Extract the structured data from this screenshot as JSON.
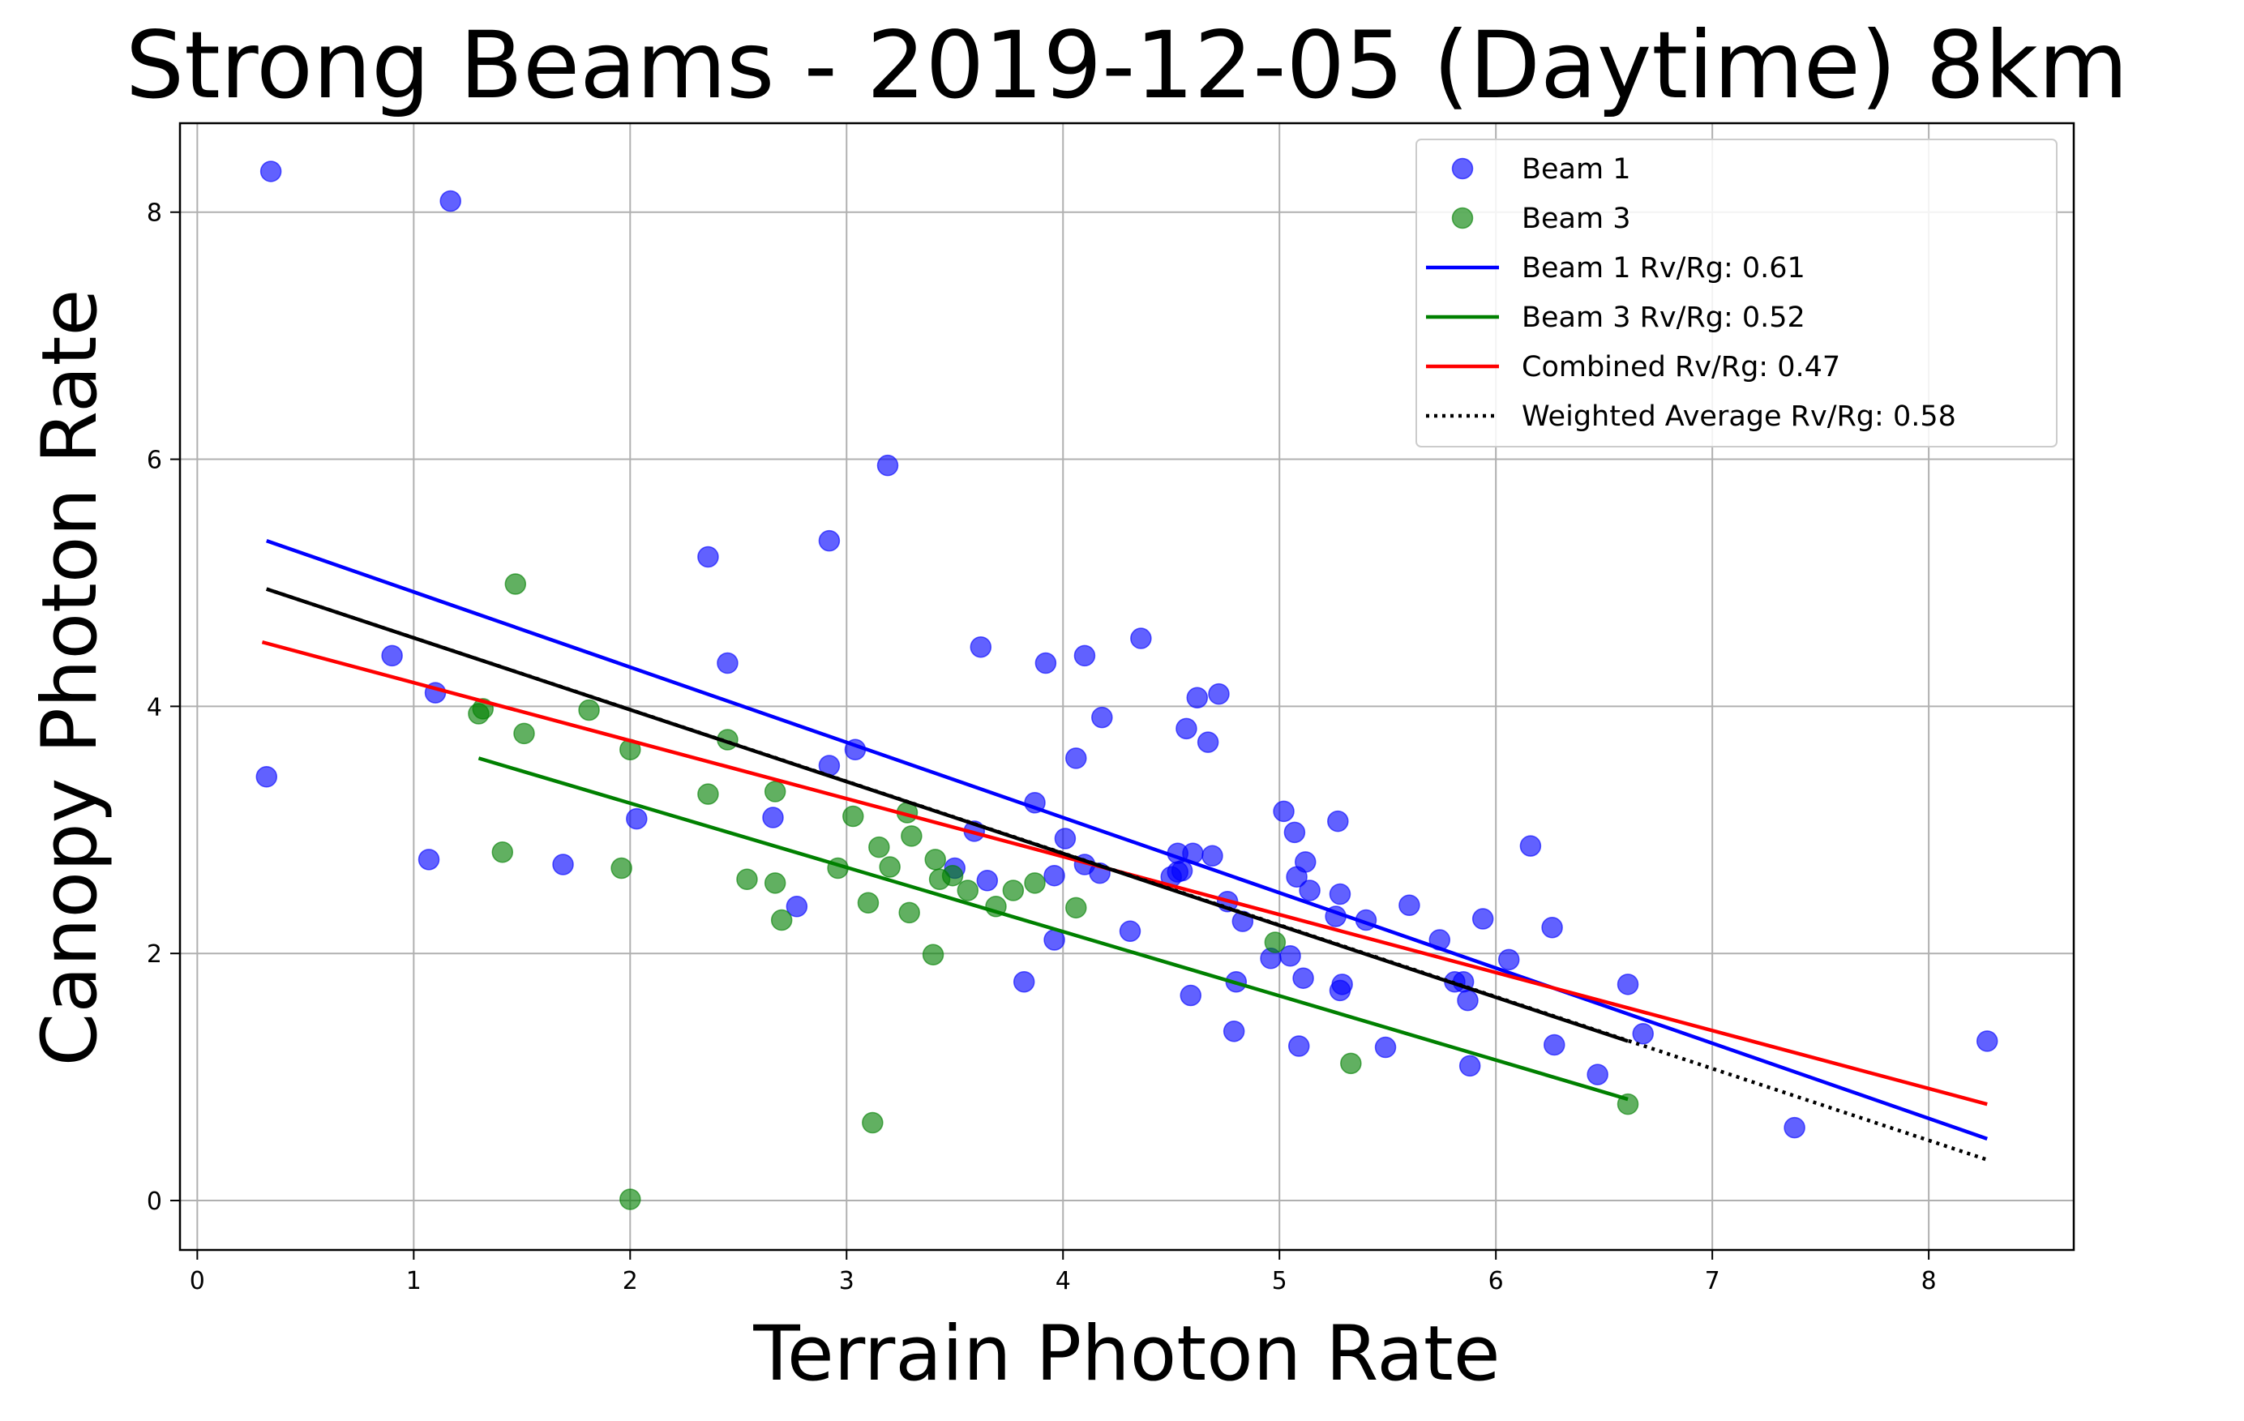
{
  "chart_data": {
    "type": "scatter",
    "title": "Strong Beams - 2019-12-05 (Daytime) 8km",
    "xlabel": "Terrain Photon Rate",
    "ylabel": "Canopy Photon Rate",
    "xlim": [
      -0.08,
      8.67
    ],
    "ylim": [
      -0.4,
      8.72
    ],
    "xticks": [
      0,
      1,
      2,
      3,
      4,
      5,
      6,
      7,
      8
    ],
    "yticks": [
      0,
      2,
      4,
      6,
      8
    ],
    "grid": true,
    "legend_position": "top-right",
    "series": [
      {
        "name": "Beam 1",
        "kind": "scatter",
        "color": "#0000ff",
        "points": [
          [
            0.34,
            8.33
          ],
          [
            1.17,
            8.09
          ],
          [
            0.32,
            3.43
          ],
          [
            0.9,
            4.41
          ],
          [
            1.1,
            4.11
          ],
          [
            1.07,
            2.76
          ],
          [
            1.69,
            2.72
          ],
          [
            2.03,
            3.09
          ],
          [
            2.36,
            5.21
          ],
          [
            2.45,
            4.35
          ],
          [
            2.66,
            3.1
          ],
          [
            2.77,
            2.38
          ],
          [
            2.92,
            5.34
          ],
          [
            2.92,
            3.52
          ],
          [
            3.04,
            3.65
          ],
          [
            3.19,
            5.95
          ],
          [
            3.5,
            2.69
          ],
          [
            3.59,
            2.99
          ],
          [
            3.62,
            4.48
          ],
          [
            3.65,
            2.59
          ],
          [
            3.82,
            1.77
          ],
          [
            3.87,
            3.22
          ],
          [
            3.92,
            4.35
          ],
          [
            3.96,
            2.11
          ],
          [
            3.96,
            2.63
          ],
          [
            4.01,
            2.93
          ],
          [
            4.06,
            3.58
          ],
          [
            4.1,
            4.41
          ],
          [
            4.1,
            2.72
          ],
          [
            4.17,
            2.65
          ],
          [
            4.18,
            3.91
          ],
          [
            4.31,
            2.18
          ],
          [
            4.36,
            4.55
          ],
          [
            4.5,
            2.62
          ],
          [
            4.53,
            2.81
          ],
          [
            4.53,
            2.66
          ],
          [
            4.55,
            2.67
          ],
          [
            4.57,
            3.82
          ],
          [
            4.59,
            1.66
          ],
          [
            4.6,
            2.81
          ],
          [
            4.62,
            4.07
          ],
          [
            4.67,
            3.71
          ],
          [
            4.69,
            2.79
          ],
          [
            4.72,
            4.1
          ],
          [
            4.76,
            2.42
          ],
          [
            4.79,
            1.37
          ],
          [
            4.8,
            1.77
          ],
          [
            4.83,
            2.26
          ],
          [
            4.96,
            1.96
          ],
          [
            5.02,
            3.15
          ],
          [
            5.05,
            1.98
          ],
          [
            5.07,
            2.98
          ],
          [
            5.08,
            2.62
          ],
          [
            5.09,
            1.25
          ],
          [
            5.11,
            1.8
          ],
          [
            5.12,
            2.74
          ],
          [
            5.14,
            2.51
          ],
          [
            5.26,
            2.3
          ],
          [
            5.27,
            3.07
          ],
          [
            5.28,
            2.48
          ],
          [
            5.28,
            1.7
          ],
          [
            5.29,
            1.75
          ],
          [
            5.4,
            2.27
          ],
          [
            5.49,
            1.24
          ],
          [
            5.6,
            2.39
          ],
          [
            5.74,
            2.11
          ],
          [
            5.81,
            1.77
          ],
          [
            5.85,
            1.77
          ],
          [
            5.87,
            1.62
          ],
          [
            5.88,
            1.09
          ],
          [
            5.94,
            2.28
          ],
          [
            6.06,
            1.95
          ],
          [
            6.16,
            2.87
          ],
          [
            6.26,
            2.21
          ],
          [
            6.27,
            1.26
          ],
          [
            6.47,
            1.02
          ],
          [
            6.61,
            1.75
          ],
          [
            6.68,
            1.35
          ],
          [
            7.38,
            0.59
          ],
          [
            8.27,
            1.29
          ]
        ]
      },
      {
        "name": "Beam 3",
        "kind": "scatter",
        "color": "#008000",
        "points": [
          [
            1.3,
            3.94
          ],
          [
            1.32,
            3.98
          ],
          [
            1.41,
            2.82
          ],
          [
            1.47,
            4.99
          ],
          [
            1.51,
            3.78
          ],
          [
            1.81,
            3.97
          ],
          [
            1.96,
            2.69
          ],
          [
            2.0,
            3.65
          ],
          [
            2.0,
            0.01
          ],
          [
            2.36,
            3.29
          ],
          [
            2.45,
            3.73
          ],
          [
            2.54,
            2.6
          ],
          [
            2.67,
            3.31
          ],
          [
            2.67,
            2.57
          ],
          [
            2.7,
            2.27
          ],
          [
            2.96,
            2.69
          ],
          [
            3.03,
            3.11
          ],
          [
            3.1,
            2.41
          ],
          [
            3.12,
            0.63
          ],
          [
            3.15,
            2.86
          ],
          [
            3.2,
            2.7
          ],
          [
            3.28,
            3.14
          ],
          [
            3.29,
            2.33
          ],
          [
            3.3,
            2.95
          ],
          [
            3.4,
            1.99
          ],
          [
            3.41,
            2.76
          ],
          [
            3.43,
            2.6
          ],
          [
            3.49,
            2.63
          ],
          [
            3.56,
            2.51
          ],
          [
            3.69,
            2.38
          ],
          [
            3.77,
            2.51
          ],
          [
            3.87,
            2.57
          ],
          [
            4.06,
            2.37
          ],
          [
            4.98,
            2.09
          ],
          [
            5.33,
            1.11
          ],
          [
            6.61,
            0.78
          ]
        ]
      },
      {
        "name": "Beam 1 Rv/Rg: 0.61",
        "kind": "line",
        "color": "#0000ff",
        "points": [
          [
            0.32,
            5.34
          ],
          [
            8.27,
            0.5
          ]
        ]
      },
      {
        "name": "Beam 3 Rv/Rg: 0.52",
        "kind": "line",
        "color": "#008000",
        "points": [
          [
            1.3,
            3.58
          ],
          [
            6.61,
            0.82
          ]
        ]
      },
      {
        "name": "Combined Rv/Rg: 0.47",
        "kind": "line",
        "color": "#ff0000",
        "points": [
          [
            0.3,
            4.52
          ],
          [
            8.27,
            0.78
          ]
        ]
      },
      {
        "name": "Weighted Average Rv/Rg: 0.58",
        "kind": "dotted-line",
        "color": "#000000",
        "points": [
          [
            0.32,
            4.95
          ],
          [
            8.27,
            0.33
          ]
        ]
      },
      {
        "name": "",
        "kind": "line",
        "color": "#000000",
        "points": [
          [
            0.32,
            4.95
          ],
          [
            6.61,
            1.29
          ]
        ]
      }
    ],
    "legend": [
      {
        "label": "Beam 1",
        "marker": "dot",
        "color": "#0000ff"
      },
      {
        "label": "Beam 3",
        "marker": "dot",
        "color": "#008000"
      },
      {
        "label": "Beam 1 Rv/Rg: 0.61",
        "marker": "line",
        "color": "#0000ff"
      },
      {
        "label": "Beam 3 Rv/Rg: 0.52",
        "marker": "line",
        "color": "#008000"
      },
      {
        "label": "Combined Rv/Rg: 0.47",
        "marker": "line",
        "color": "#ff0000"
      },
      {
        "label": "Weighted Average Rv/Rg: 0.58",
        "marker": "dotted",
        "color": "#000000"
      }
    ]
  }
}
